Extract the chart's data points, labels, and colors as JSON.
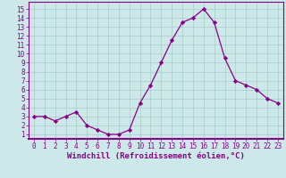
{
  "x": [
    0,
    1,
    2,
    3,
    4,
    5,
    6,
    7,
    8,
    9,
    10,
    11,
    12,
    13,
    14,
    15,
    16,
    17,
    18,
    19,
    20,
    21,
    22,
    23
  ],
  "y": [
    3,
    3,
    2.5,
    3,
    3.5,
    2,
    1.5,
    1,
    1,
    1.5,
    4.5,
    6.5,
    9,
    11.5,
    13.5,
    14,
    15,
    13.5,
    9.5,
    7,
    6.5,
    6,
    5,
    4.5
  ],
  "line_color": "#880088",
  "marker": "D",
  "marker_size": 2.2,
  "bg_color": "#cce8e8",
  "grid_color": "#aacccc",
  "xlabel": "Windchill (Refroidissement éolien,°C)",
  "xlabel_fontsize": 6.5,
  "xtick_labels": [
    "0",
    "1",
    "2",
    "3",
    "4",
    "5",
    "6",
    "7",
    "8",
    "9",
    "10",
    "11",
    "12",
    "13",
    "14",
    "15",
    "16",
    "17",
    "18",
    "19",
    "20",
    "21",
    "22",
    "23"
  ],
  "ytick_labels": [
    "1",
    "2",
    "3",
    "4",
    "5",
    "6",
    "7",
    "8",
    "9",
    "10",
    "11",
    "12",
    "13",
    "14",
    "15"
  ],
  "ylim": [
    0.5,
    15.8
  ],
  "xlim": [
    -0.5,
    23.5
  ],
  "spine_color": "#880088",
  "tick_color": "#880088",
  "label_color": "#880088",
  "tick_fontsize": 5.5
}
